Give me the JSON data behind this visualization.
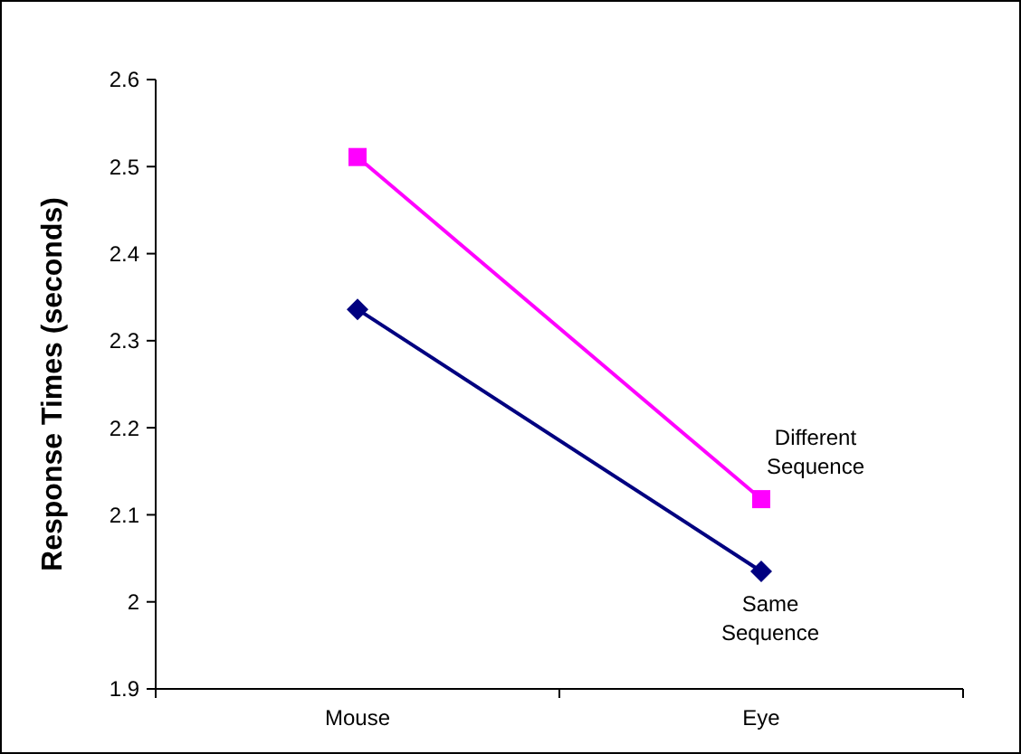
{
  "chart_data": {
    "type": "line",
    "ylabel": "Response Times (seconds)",
    "categories": [
      "Mouse",
      "Eye"
    ],
    "series": [
      {
        "name": "Same Sequence",
        "color": "#000080",
        "values": [
          2.336,
          2.035
        ],
        "marker": "diamond"
      },
      {
        "name": "Different Sequence",
        "color": "#ff00ff",
        "values": [
          2.511,
          2.118
        ],
        "marker": "square"
      }
    ],
    "ylim": [
      1.9,
      2.6
    ],
    "yticks": [
      1.9,
      2,
      2.1,
      2.2,
      2.3,
      2.4,
      2.5,
      2.6
    ],
    "grid": false,
    "legend": false,
    "line_style": "solid"
  }
}
